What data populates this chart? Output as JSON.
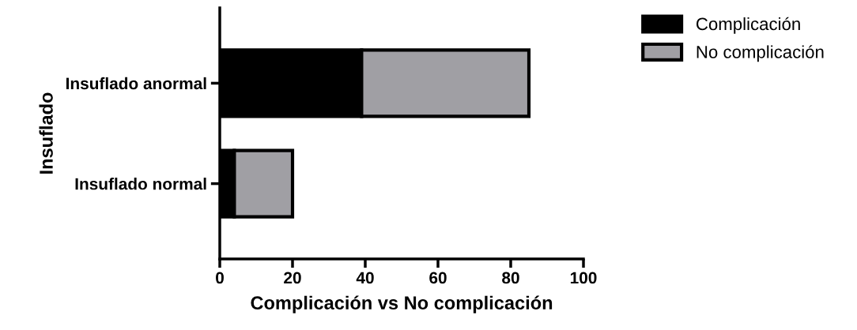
{
  "chart_data": {
    "type": "bar",
    "orientation": "horizontal",
    "stacked": true,
    "categories": [
      "Insuflado anormal",
      "Insuflado normal"
    ],
    "series": [
      {
        "name": "Complicación",
        "color": "#000000",
        "values": [
          39,
          4
        ]
      },
      {
        "name": "No complicación",
        "color": "#a09fa4",
        "values": [
          46,
          16
        ]
      }
    ],
    "xlabel": "Complicación vs No complicación",
    "ylabel": "Insuflado",
    "xlim": [
      0,
      100
    ],
    "xticks": [
      0,
      20,
      40,
      60,
      80,
      100
    ],
    "grid": false,
    "legend": "top right"
  }
}
